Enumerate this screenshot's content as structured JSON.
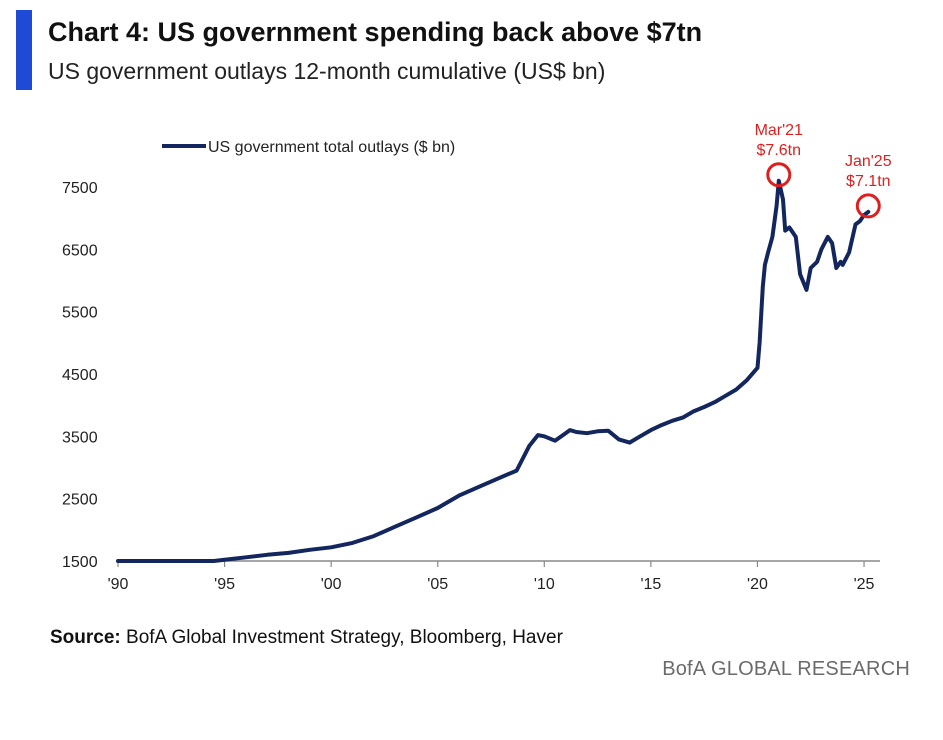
{
  "header": {
    "title": "Chart 4: US government spending back above $7tn",
    "subtitle": "US government outlays 12-month cumulative (US$ bn)"
  },
  "footer": {
    "source_label": "Source:",
    "source_text": " BofA Global Investment Strategy, Bloomberg, Haver",
    "brand": "BofA GLOBAL RESEARCH"
  },
  "colors": {
    "accent": "#1f4ad6",
    "series": "#13275e",
    "annotation": "#e01e1e"
  },
  "chart_data": {
    "type": "line",
    "title": "Chart 4: US government spending back above $7tn",
    "ylabel": "US government outlays 12-month cumulative (US$ bn)",
    "xlim": [
      1990,
      2026.5
    ],
    "ylim": [
      1500,
      7600
    ],
    "y_ticks": [
      1500,
      2500,
      3500,
      4500,
      5500,
      6500,
      7500
    ],
    "x_ticks": [
      {
        "year": 1990,
        "label": "'90"
      },
      {
        "year": 1995,
        "label": "'95"
      },
      {
        "year": 2000,
        "label": "'00"
      },
      {
        "year": 2005,
        "label": "'05"
      },
      {
        "year": 2010,
        "label": "'10"
      },
      {
        "year": 2015,
        "label": "'15"
      },
      {
        "year": 2020,
        "label": "'20"
      },
      {
        "year": 2025,
        "label": "'25"
      }
    ],
    "legend": "top-left",
    "series": [
      {
        "name": "US government total outlays ($ bn)",
        "x": [
          1990,
          1992,
          1994.5,
          1995,
          1996,
          1997,
          1998,
          1999,
          2000,
          2001,
          2002,
          2003,
          2004,
          2005,
          2006,
          2007,
          2008,
          2008.7,
          2009,
          2009.3,
          2009.7,
          2010,
          2010.5,
          2011,
          2011.2,
          2011.5,
          2012,
          2012.5,
          2013,
          2013.5,
          2014,
          2014.5,
          2015,
          2015.5,
          2016,
          2016.5,
          2017,
          2017.5,
          2018,
          2018.5,
          2019,
          2019.5,
          2020,
          2020.1,
          2020.25,
          2020.35,
          2020.5,
          2020.7,
          2020.9,
          2021,
          2021.2,
          2021.3,
          2021.5,
          2021.8,
          2022,
          2022.3,
          2022.5,
          2022.8,
          2023,
          2023.3,
          2023.5,
          2023.7,
          2023.9,
          2024,
          2024.3,
          2024.6,
          2024.8,
          2025,
          2025.2
        ],
        "values": [
          1500,
          1500,
          1500,
          1520,
          1560,
          1600,
          1630,
          1680,
          1720,
          1790,
          1900,
          2050,
          2200,
          2350,
          2550,
          2700,
          2850,
          2950,
          3150,
          3350,
          3520,
          3500,
          3430,
          3550,
          3600,
          3570,
          3550,
          3580,
          3590,
          3450,
          3400,
          3500,
          3600,
          3680,
          3750,
          3800,
          3900,
          3970,
          4050,
          4150,
          4250,
          4400,
          4600,
          5000,
          5900,
          6250,
          6450,
          6700,
          7200,
          7600,
          7300,
          6800,
          6850,
          6700,
          6100,
          5850,
          6200,
          6300,
          6500,
          6700,
          6600,
          6200,
          6300,
          6250,
          6450,
          6900,
          6950,
          7050,
          7100
        ]
      }
    ],
    "annotations": [
      {
        "x": 2021,
        "y": 7600,
        "line1": "Mar'21",
        "line2": "$7.6tn"
      },
      {
        "x": 2025.2,
        "y": 7100,
        "line1": "Jan'25",
        "line2": "$7.1tn"
      }
    ]
  }
}
